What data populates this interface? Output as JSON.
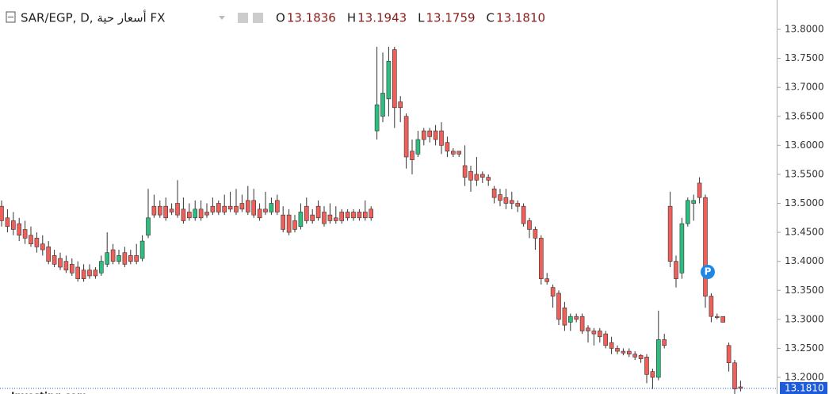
{
  "chart_data": {
    "type": "candlestick",
    "symbol": "SAR/EGP, D, أسعار حية FX",
    "ohlc_header": [
      {
        "label": "O",
        "value": "13.1836"
      },
      {
        "label": "H",
        "value": "13.1943"
      },
      {
        "label": "L",
        "value": "13.1759"
      },
      {
        "label": "C",
        "value": "13.1810"
      }
    ],
    "up_color": "#2dbd7e",
    "down_color": "#f0605a",
    "series": [
      {
        "open": [
          13.495,
          13.475,
          13.47,
          13.465,
          13.455,
          13.445,
          13.44,
          13.43,
          13.425,
          13.41,
          13.405,
          13.4,
          13.395,
          13.39,
          13.385,
          13.385,
          13.385,
          13.38,
          13.395,
          13.42,
          13.4,
          13.415,
          13.41,
          13.41,
          13.405,
          13.445,
          13.495,
          13.495,
          13.495,
          13.49,
          13.5,
          13.49,
          13.485,
          13.475,
          13.49,
          13.485,
          13.495,
          13.5,
          13.495,
          13.495,
          13.495,
          13.5,
          13.505,
          13.505,
          13.49,
          13.49,
          13.485,
          13.505,
          13.48,
          13.48,
          13.47,
          13.46,
          13.495,
          13.48,
          13.495,
          13.485,
          13.48,
          13.475,
          13.485,
          13.485,
          13.485,
          13.485,
          13.485,
          13.49,
          13.625,
          13.65,
          13.68,
          13.765,
          13.675,
          13.65,
          13.59,
          13.585,
          13.625,
          13.625,
          13.625,
          13.625,
          13.605,
          13.59,
          13.59,
          13.565,
          13.555,
          13.55,
          13.55,
          13.545,
          13.525,
          13.515,
          13.51,
          13.505,
          13.5,
          13.495,
          13.47,
          13.455,
          13.44,
          13.37,
          13.355,
          13.345,
          13.32,
          13.295,
          13.305,
          13.305,
          13.285,
          13.28,
          13.28,
          13.275,
          13.26,
          13.25,
          13.245,
          13.245,
          13.24,
          13.238,
          13.235,
          13.21,
          13.2,
          13.265,
          13.495,
          13.4,
          13.38,
          13.465,
          13.5,
          13.535,
          13.51,
          13.34,
          13.305,
          13.305,
          13.255,
          13.225,
          13.1836
        ],
        "high": [
          13.505,
          13.49,
          13.485,
          13.475,
          13.47,
          13.46,
          13.45,
          13.445,
          13.435,
          13.42,
          13.415,
          13.41,
          13.405,
          13.4,
          13.395,
          13.395,
          13.39,
          13.41,
          13.45,
          13.43,
          13.42,
          13.425,
          13.42,
          13.43,
          13.445,
          13.525,
          13.515,
          13.505,
          13.51,
          13.5,
          13.54,
          13.51,
          13.5,
          13.505,
          13.505,
          13.5,
          13.51,
          13.505,
          13.515,
          13.52,
          13.525,
          13.515,
          13.53,
          13.525,
          13.5,
          13.52,
          13.51,
          13.515,
          13.495,
          13.49,
          13.48,
          13.5,
          13.51,
          13.49,
          13.505,
          13.495,
          13.5,
          13.495,
          13.49,
          13.49,
          13.49,
          13.49,
          13.505,
          13.495,
          13.77,
          13.76,
          13.77,
          13.77,
          13.685,
          13.655,
          13.61,
          13.625,
          13.63,
          13.63,
          13.635,
          13.64,
          13.615,
          13.595,
          13.59,
          13.6,
          13.565,
          13.58,
          13.555,
          13.55,
          13.53,
          13.525,
          13.525,
          13.52,
          13.505,
          13.5,
          13.475,
          13.46,
          13.445,
          13.38,
          13.36,
          13.35,
          13.33,
          13.31,
          13.31,
          13.31,
          13.29,
          13.285,
          13.285,
          13.28,
          13.27,
          13.255,
          13.25,
          13.25,
          13.245,
          13.24,
          13.24,
          13.215,
          13.315,
          13.275,
          13.52,
          13.41,
          13.475,
          13.51,
          13.515,
          13.545,
          13.515,
          13.345,
          13.31,
          13.305,
          13.26,
          13.23,
          13.1943
        ],
        "low": [
          13.46,
          13.45,
          13.445,
          13.435,
          13.43,
          13.425,
          13.415,
          13.41,
          13.395,
          13.39,
          13.385,
          13.38,
          13.375,
          13.365,
          13.365,
          13.37,
          13.37,
          13.375,
          13.39,
          13.395,
          13.395,
          13.39,
          13.395,
          13.395,
          13.4,
          13.44,
          13.475,
          13.475,
          13.47,
          13.48,
          13.475,
          13.465,
          13.47,
          13.47,
          13.47,
          13.475,
          13.48,
          13.48,
          13.48,
          13.485,
          13.48,
          13.485,
          13.48,
          13.475,
          13.47,
          13.48,
          13.48,
          13.48,
          13.45,
          13.445,
          13.45,
          13.455,
          13.465,
          13.465,
          13.47,
          13.46,
          13.465,
          13.465,
          13.465,
          13.47,
          13.47,
          13.47,
          13.47,
          13.47,
          13.61,
          13.64,
          13.65,
          13.63,
          13.64,
          13.56,
          13.55,
          13.58,
          13.6,
          13.605,
          13.6,
          13.585,
          13.58,
          13.58,
          13.58,
          13.53,
          13.52,
          13.53,
          13.535,
          13.53,
          13.5,
          13.495,
          13.49,
          13.49,
          13.485,
          13.46,
          13.44,
          13.42,
          13.36,
          13.36,
          13.32,
          13.29,
          13.28,
          13.28,
          13.295,
          13.275,
          13.26,
          13.255,
          13.26,
          13.25,
          13.24,
          13.24,
          13.238,
          13.235,
          13.23,
          13.225,
          13.19,
          13.18,
          13.195,
          13.25,
          13.39,
          13.355,
          13.37,
          13.46,
          13.47,
          13.5,
          13.32,
          13.295,
          13.3,
          13.295,
          13.21,
          13.17,
          13.1759
        ],
        "close": [
          13.47,
          13.46,
          13.455,
          13.445,
          13.44,
          13.43,
          13.425,
          13.42,
          13.4,
          13.395,
          13.39,
          13.385,
          13.38,
          13.37,
          13.37,
          13.375,
          13.375,
          13.4,
          13.415,
          13.4,
          13.41,
          13.395,
          13.4,
          13.4,
          13.435,
          13.475,
          13.48,
          13.48,
          13.475,
          13.485,
          13.48,
          13.47,
          13.475,
          13.49,
          13.475,
          13.48,
          13.485,
          13.485,
          13.485,
          13.49,
          13.485,
          13.49,
          13.485,
          13.48,
          13.475,
          13.485,
          13.5,
          13.485,
          13.455,
          13.45,
          13.455,
          13.485,
          13.47,
          13.47,
          13.475,
          13.465,
          13.47,
          13.47,
          13.47,
          13.475,
          13.475,
          13.475,
          13.475,
          13.475,
          13.67,
          13.69,
          13.745,
          13.665,
          13.665,
          13.58,
          13.575,
          13.61,
          13.61,
          13.615,
          13.61,
          13.6,
          13.59,
          13.585,
          13.585,
          13.545,
          13.54,
          13.54,
          13.545,
          13.54,
          13.51,
          13.505,
          13.5,
          13.5,
          13.495,
          13.465,
          13.455,
          13.44,
          13.37,
          13.365,
          13.34,
          13.3,
          13.29,
          13.305,
          13.3,
          13.28,
          13.28,
          13.275,
          13.27,
          13.255,
          13.25,
          13.245,
          13.242,
          13.24,
          13.235,
          13.232,
          13.205,
          13.2,
          13.265,
          13.255,
          13.4,
          13.37,
          13.465,
          13.505,
          13.505,
          13.51,
          13.34,
          13.305,
          13.303,
          13.295,
          13.225,
          13.18,
          13.181
        ]
      }
    ],
    "marker": "P",
    "last_price": {
      "value": 13.181,
      "label": "13.1810"
    },
    "ylim": [
      13.1713,
      13.8506
    ],
    "yticks": [
      {
        "value": 13.2,
        "label": "13.2000"
      },
      {
        "value": 13.25,
        "label": "13.2500"
      },
      {
        "value": 13.3,
        "label": "13.3000"
      },
      {
        "value": 13.35,
        "label": "13.3500"
      },
      {
        "value": 13.4,
        "label": "13.4000"
      },
      {
        "value": 13.45,
        "label": "13.4500"
      },
      {
        "value": 13.5,
        "label": "13.5000"
      },
      {
        "value": 13.55,
        "label": "13.5500"
      },
      {
        "value": 13.6,
        "label": "13.6000"
      },
      {
        "value": 13.65,
        "label": "13.6500"
      },
      {
        "value": 13.7,
        "label": "13.7000"
      },
      {
        "value": 13.75,
        "label": "13.7500"
      },
      {
        "value": 13.8,
        "label": "13.8000"
      }
    ],
    "watermark": "Investing.com"
  }
}
